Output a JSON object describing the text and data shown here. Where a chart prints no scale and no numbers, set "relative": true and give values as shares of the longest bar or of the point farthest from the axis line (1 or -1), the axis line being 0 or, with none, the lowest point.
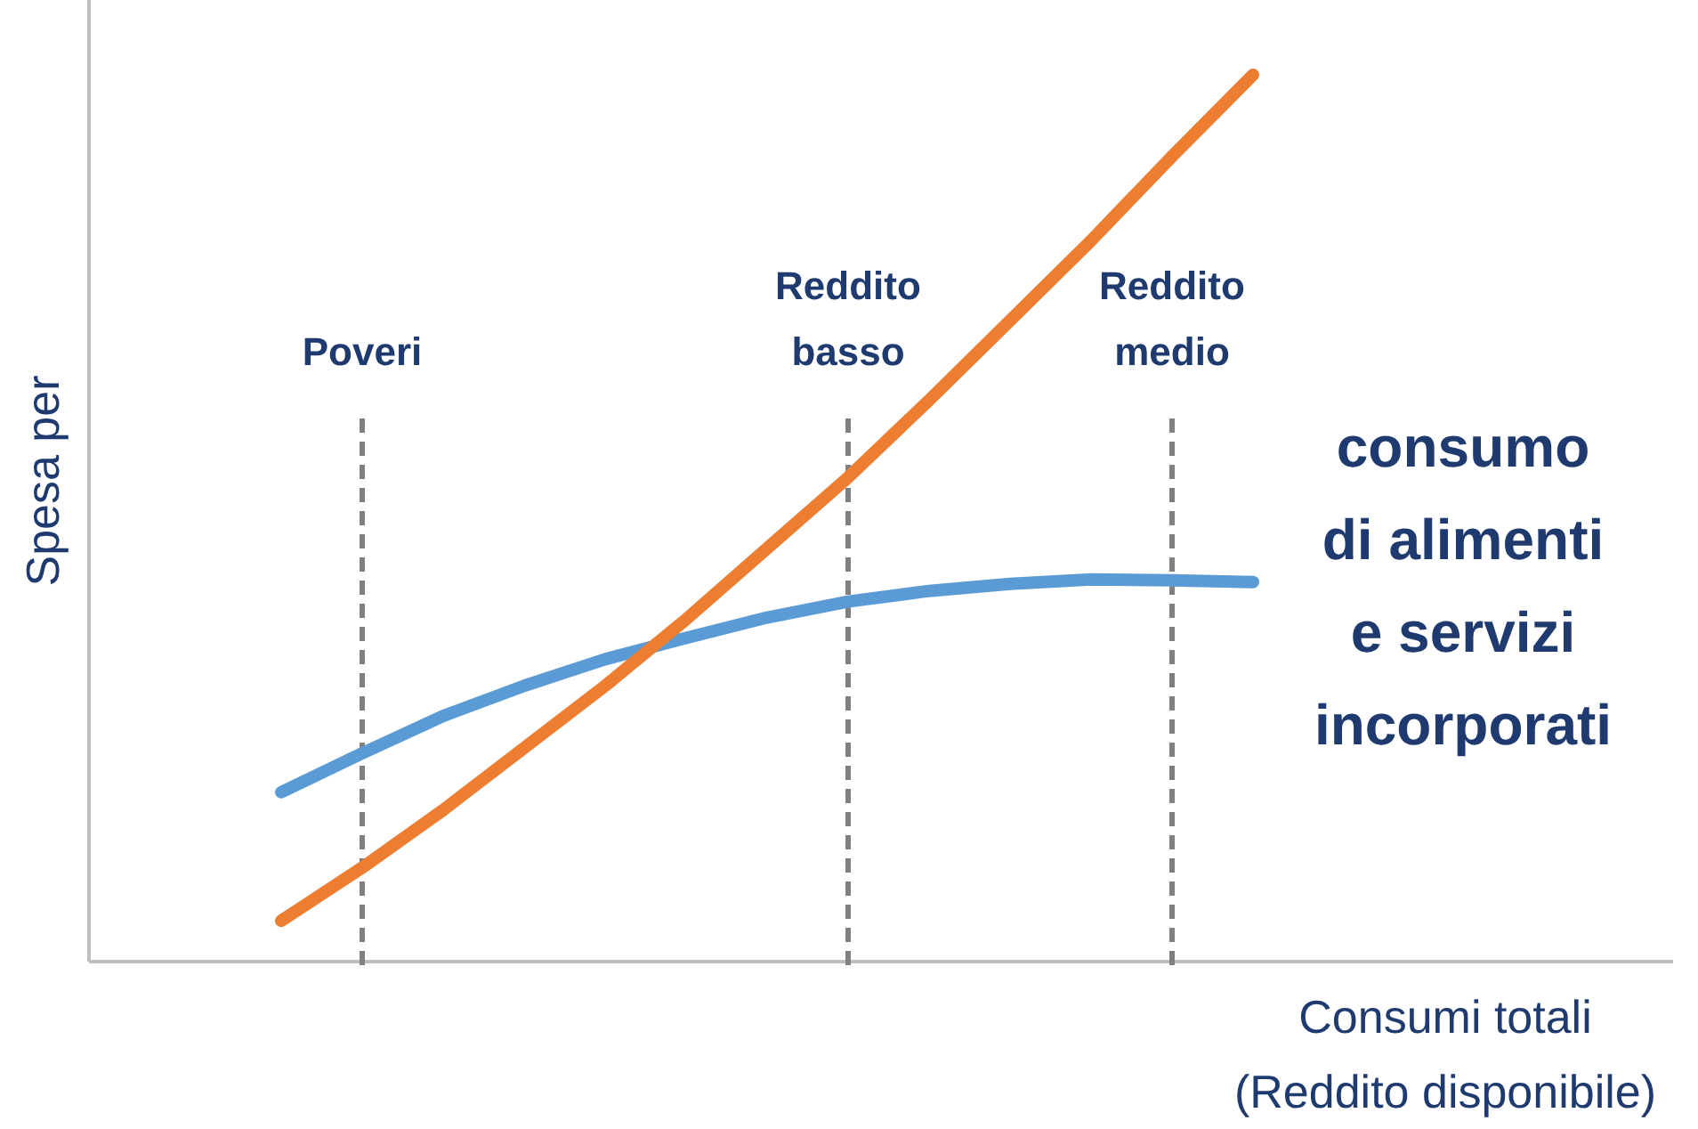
{
  "chart_data": {
    "type": "line",
    "relative": true,
    "ylabel": "Spesa per",
    "xlabel": "Consumi totali\n(Reddito disponibile)",
    "marker": "none",
    "line_style": "solid",
    "categories": [
      null,
      "Poveri",
      null,
      null,
      null,
      null,
      null,
      "Reddito\nbasso",
      null,
      null,
      null,
      "Reddito\nmedio",
      null
    ],
    "annotations": [
      "consumo\ndi alimenti\ne servizi\nincorporati"
    ],
    "ref_lines": [
      {
        "axis": "x",
        "value": "Poveri",
        "color": "#808080",
        "line_style": "dashed"
      },
      {
        "axis": "x",
        "value": "Reddito\nbasso",
        "color": "#808080",
        "line_style": "dashed"
      },
      {
        "axis": "x",
        "value": "Reddito\nmedio",
        "color": "#808080",
        "line_style": "dashed"
      }
    ],
    "series": [
      {
        "color": "#5b9bd5",
        "values": [
          0.191,
          0.235,
          0.277,
          0.311,
          0.341,
          0.365,
          0.388,
          0.406,
          0.418,
          0.426,
          0.431,
          0.43,
          0.428
        ]
      },
      {
        "color": "#ed7d31",
        "values": [
          0.046,
          0.106,
          0.171,
          0.241,
          0.311,
          0.386,
          0.466,
          0.546,
          0.633,
          0.723,
          0.813,
          0.908,
          1.0
        ]
      }
    ]
  }
}
